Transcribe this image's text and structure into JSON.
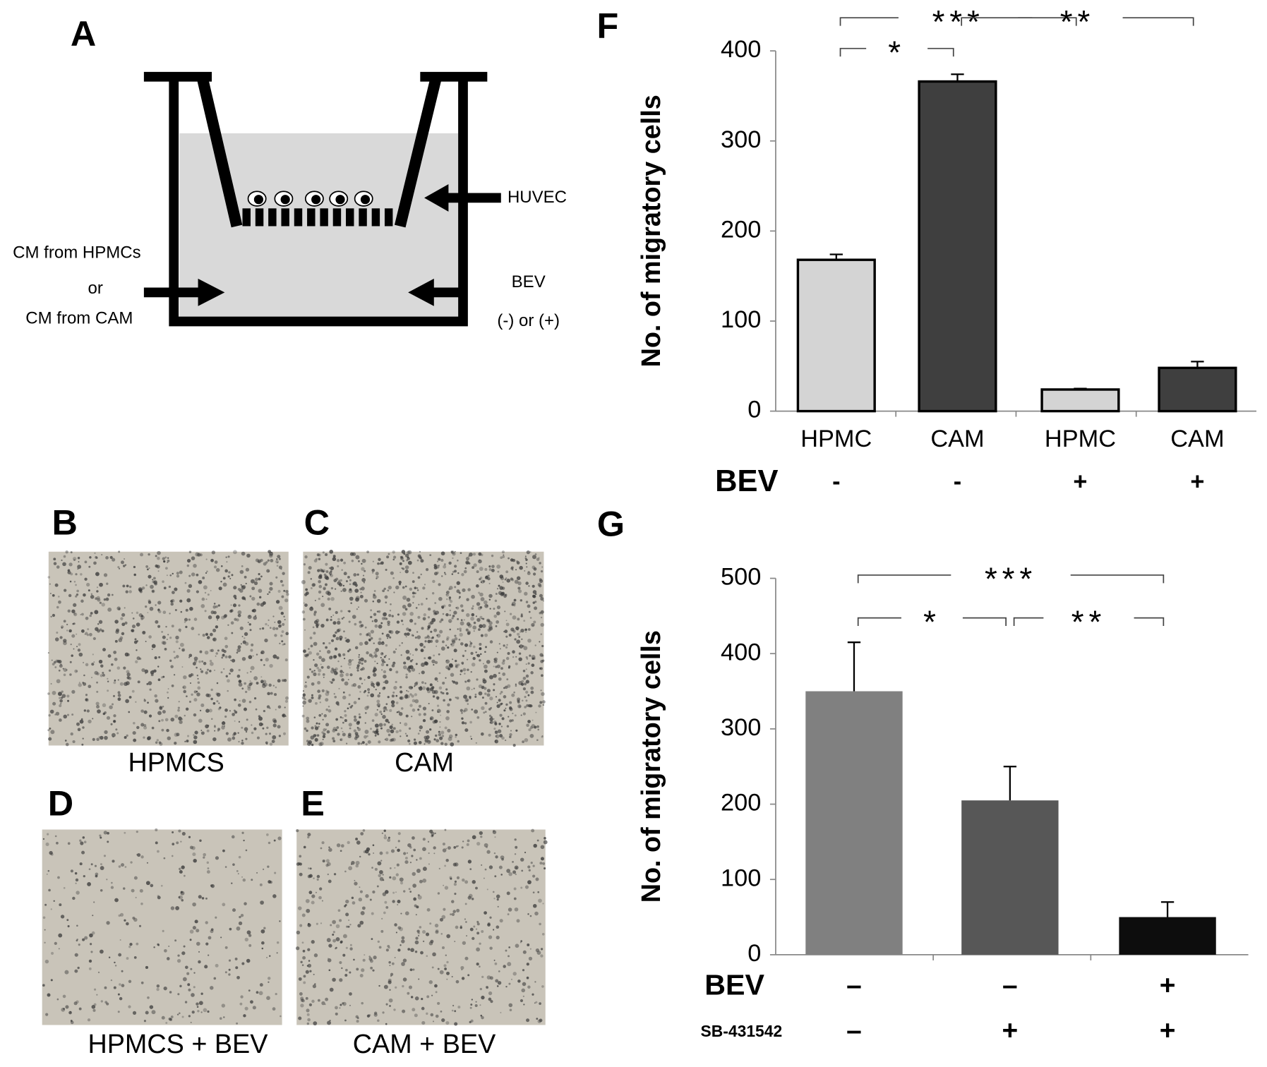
{
  "panels": {
    "A": {
      "letter": "A",
      "huvec": "HUVEC",
      "cm_hpmcs": "CM from HPMCs",
      "or": "or",
      "cm_cam": "CM from CAM",
      "bev": "BEV",
      "bev_sign": "(-) or (+)"
    },
    "images": [
      {
        "letter": "B",
        "caption": "HPMCS"
      },
      {
        "letter": "C",
        "caption": "CAM"
      },
      {
        "letter": "D",
        "caption": "HPMCS + BEV"
      },
      {
        "letter": "E",
        "caption": "CAM + BEV"
      }
    ]
  },
  "chart_data": [
    {
      "type": "bar",
      "letter": "F",
      "ylabel": "No. of migratory cells",
      "categories": [
        "HPMC",
        "CAM",
        "HPMC",
        "CAM"
      ],
      "values": [
        168,
        366,
        24,
        48
      ],
      "errors": [
        6,
        8,
        1,
        7
      ],
      "colors": [
        "#d4d4d4",
        "#3f3f3f",
        "#d4d4d4",
        "#3f3f3f"
      ],
      "ylim": [
        0,
        400
      ],
      "yticks": [
        0,
        100,
        200,
        300,
        400
      ],
      "treatments": [
        {
          "label": "BEV",
          "values": [
            "-",
            "-",
            "+",
            "+"
          ]
        }
      ],
      "annotations": [
        {
          "text": "***",
          "from": 0,
          "to": 2
        },
        {
          "text": "*",
          "from": 0,
          "to": 1
        },
        {
          "text": "**",
          "from": 1,
          "to": 3
        }
      ]
    },
    {
      "type": "bar",
      "letter": "G",
      "ylabel": "No. of migratory cells",
      "values": [
        350,
        205,
        50
      ],
      "errors": [
        65,
        45,
        20
      ],
      "colors": [
        "#808080",
        "#575757",
        "#0d0d0d"
      ],
      "ylim": [
        0,
        500
      ],
      "yticks": [
        0,
        100,
        200,
        300,
        400,
        500
      ],
      "treatments": [
        {
          "label": "BEV",
          "values": [
            "–",
            "–",
            "+"
          ]
        },
        {
          "label": "SB-431542",
          "values": [
            "–",
            "+",
            "+"
          ]
        }
      ],
      "annotations": [
        {
          "text": "***",
          "from": 0,
          "to": 2
        },
        {
          "text": "*",
          "from": 0,
          "to": 1
        },
        {
          "text": "**",
          "from": 1,
          "to": 2
        }
      ]
    }
  ]
}
